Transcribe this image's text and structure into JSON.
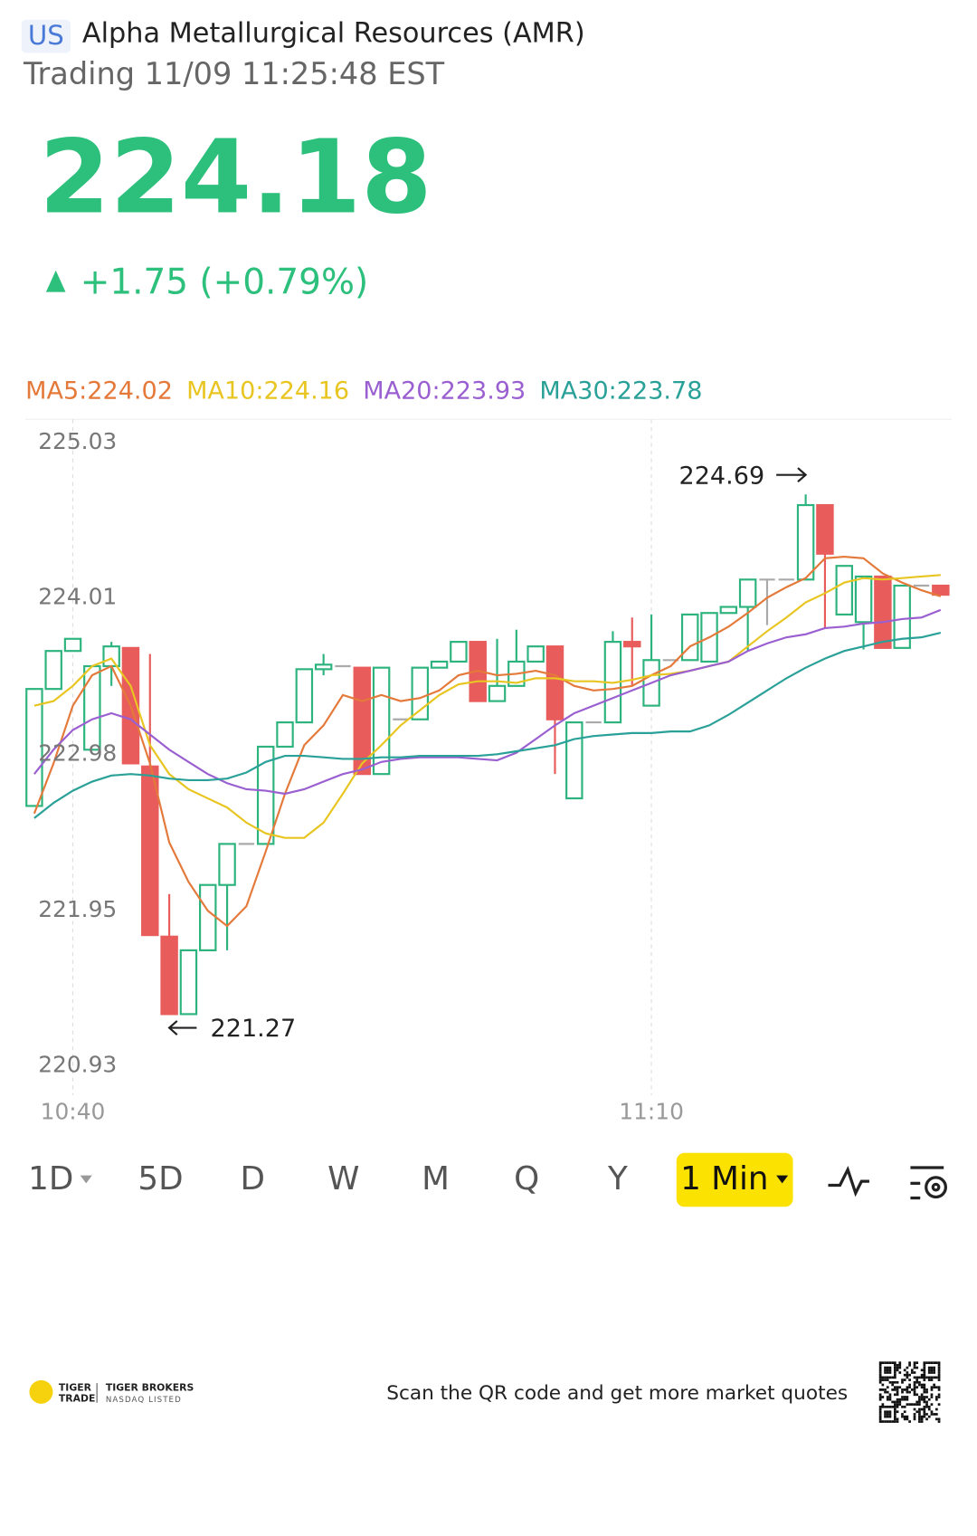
{
  "header": {
    "market": "US",
    "title": "Alpha Metallurgical Resources (AMR)",
    "status": "Trading 11/09 11:25:48 EST",
    "price": "224.18",
    "change": "+1.75 (+0.79%)"
  },
  "chart_data": {
    "type": "candlestick",
    "categories": [
      null,
      null,
      "10:40",
      null,
      null,
      null,
      null,
      null,
      null,
      null,
      null,
      null,
      null,
      null,
      null,
      null,
      null,
      null,
      null,
      null,
      null,
      null,
      null,
      null,
      null,
      null,
      null,
      null,
      null,
      null,
      null,
      null,
      "11:10",
      null,
      null,
      null,
      null,
      null,
      null,
      null,
      null,
      null,
      null,
      null,
      null,
      null,
      null,
      null
    ],
    "open": [
      222.64,
      223.41,
      223.66,
      223.01,
      223.56,
      223.68,
      222.9,
      221.78,
      221.27,
      221.69,
      222.12,
      222.39,
      222.39,
      223.03,
      223.19,
      223.54,
      223.56,
      223.55,
      222.85,
      223.21,
      223.21,
      223.55,
      223.59,
      223.72,
      223.33,
      223.43,
      223.59,
      223.69,
      222.69,
      223.19,
      223.19,
      223.72,
      223.3,
      223.6,
      223.6,
      223.59,
      223.91,
      223.95,
      224.13,
      224.13,
      224.13,
      224.62,
      223.9,
      223.85,
      224.15,
      223.68,
      224.09,
      224.09
    ],
    "high": [
      223.41,
      223.66,
      223.74,
      223.56,
      223.72,
      223.68,
      223.64,
      222.06,
      221.69,
      222.12,
      222.39,
      222.39,
      223.03,
      223.19,
      223.54,
      223.64,
      223.56,
      223.55,
      223.55,
      223.21,
      223.55,
      223.59,
      223.72,
      223.72,
      223.74,
      223.8,
      223.69,
      223.69,
      223.19,
      223.19,
      223.79,
      223.88,
      223.9,
      223.6,
      223.9,
      223.91,
      223.95,
      224.13,
      224.13,
      224.13,
      224.69,
      224.62,
      224.22,
      224.15,
      224.15,
      224.09,
      224.09,
      224.09
    ],
    "low": [
      222.64,
      223.41,
      223.66,
      223.01,
      223.43,
      222.92,
      221.79,
      221.27,
      221.27,
      221.69,
      221.69,
      222.39,
      222.39,
      223.03,
      223.19,
      223.5,
      223.56,
      222.85,
      222.85,
      223.21,
      223.21,
      223.55,
      223.59,
      223.33,
      223.33,
      223.43,
      223.59,
      222.85,
      222.69,
      223.19,
      223.19,
      223.43,
      223.3,
      223.6,
      223.6,
      223.59,
      223.91,
      223.66,
      223.83,
      224.13,
      224.13,
      223.81,
      223.9,
      223.67,
      223.68,
      223.68,
      224.09,
      224.03
    ],
    "close": [
      223.41,
      223.66,
      223.74,
      223.56,
      223.69,
      222.92,
      221.79,
      221.27,
      221.69,
      222.12,
      222.39,
      222.39,
      223.03,
      223.19,
      223.54,
      223.57,
      223.56,
      222.85,
      223.55,
      223.21,
      223.55,
      223.59,
      223.72,
      223.33,
      223.43,
      223.59,
      223.69,
      223.21,
      223.19,
      223.19,
      223.72,
      223.69,
      223.6,
      223.6,
      223.9,
      223.91,
      223.95,
      224.13,
      224.13,
      224.13,
      224.62,
      224.3,
      224.22,
      224.15,
      223.68,
      224.09,
      224.09,
      224.03
    ],
    "up_color": "#2db37d",
    "down_color": "#e85c5c",
    "flat_color": "#aaaaaa",
    "series": [
      {
        "name": "MA5:224.02",
        "color": "#e4793a",
        "values": [
          222.59,
          222.92,
          223.3,
          223.5,
          223.56,
          223.3,
          222.92,
          222.4,
          222.14,
          221.95,
          221.85,
          221.98,
          222.34,
          222.72,
          223.04,
          223.17,
          223.37,
          223.33,
          223.37,
          223.33,
          223.35,
          223.4,
          223.5,
          223.53,
          223.5,
          223.51,
          223.53,
          223.5,
          223.43,
          223.4,
          223.41,
          223.43,
          223.5,
          223.56,
          223.69,
          223.75,
          223.82,
          223.91,
          224.01,
          224.08,
          224.14,
          224.27,
          224.28,
          224.27,
          224.17,
          224.11,
          224.06,
          224.02
        ]
      },
      {
        "name": "MA10:224.16",
        "color": "#e8c520",
        "values": [
          223.3,
          223.33,
          223.43,
          223.56,
          223.61,
          223.43,
          223.04,
          222.85,
          222.75,
          222.69,
          222.63,
          222.53,
          222.46,
          222.43,
          222.43,
          222.53,
          222.72,
          222.92,
          223.04,
          223.17,
          223.27,
          223.37,
          223.44,
          223.46,
          223.46,
          223.45,
          223.48,
          223.48,
          223.46,
          223.46,
          223.45,
          223.47,
          223.5,
          223.51,
          223.53,
          223.56,
          223.59,
          223.69,
          223.79,
          223.88,
          223.98,
          224.04,
          224.11,
          224.14,
          224.13,
          224.14,
          224.15,
          224.16
        ]
      },
      {
        "name": "MA20:223.93",
        "color": "#9a5fd0",
        "values": [
          222.85,
          223.01,
          223.14,
          223.21,
          223.25,
          223.21,
          223.11,
          223.01,
          222.93,
          222.85,
          222.79,
          222.75,
          222.74,
          222.72,
          222.75,
          222.8,
          222.85,
          222.88,
          222.93,
          222.95,
          222.96,
          222.96,
          222.96,
          222.95,
          222.94,
          222.99,
          223.08,
          223.17,
          223.25,
          223.3,
          223.35,
          223.4,
          223.45,
          223.5,
          223.53,
          223.56,
          223.59,
          223.66,
          223.71,
          223.75,
          223.77,
          223.81,
          223.82,
          223.84,
          223.85,
          223.87,
          223.88,
          223.93
        ]
      },
      {
        "name": "MA30:223.78",
        "color": "#2aa198",
        "values": [
          222.56,
          222.66,
          222.74,
          222.8,
          222.84,
          222.85,
          222.84,
          222.82,
          222.81,
          222.81,
          222.82,
          222.86,
          222.93,
          222.97,
          222.97,
          222.96,
          222.95,
          222.95,
          222.96,
          222.96,
          222.97,
          222.97,
          222.97,
          222.97,
          222.98,
          223.0,
          223.02,
          223.04,
          223.08,
          223.1,
          223.11,
          223.12,
          223.12,
          223.13,
          223.13,
          223.17,
          223.24,
          223.32,
          223.4,
          223.48,
          223.55,
          223.61,
          223.66,
          223.69,
          223.72,
          223.74,
          223.75,
          223.78
        ]
      }
    ],
    "ylim": [
      220.93,
      225.03
    ],
    "yticks": [
      220.93,
      221.95,
      222.98,
      224.01,
      225.03
    ],
    "xgrid": true
  },
  "tabs": [
    "1D",
    "5D",
    "D",
    "W",
    "M",
    "Q",
    "Y",
    "1 Min"
  ],
  "footer": {
    "brand": [
      "TIGER",
      "TRADE"
    ],
    "broker": "TIGER BROKERS",
    "listing": "NASDAQ LISTED",
    "prompt": "Scan the QR code and get more market quotes"
  }
}
